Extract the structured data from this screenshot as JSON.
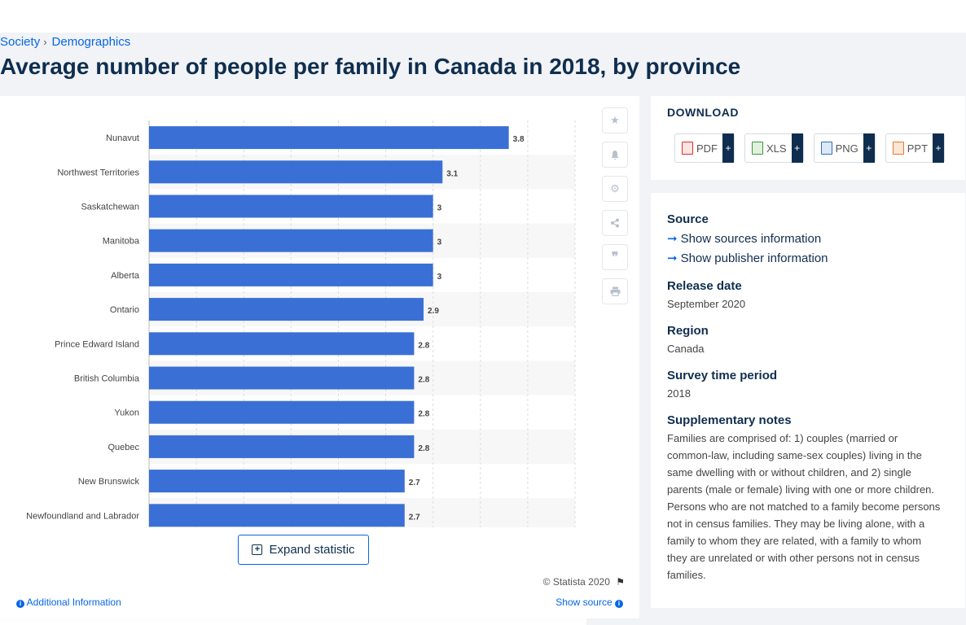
{
  "breadcrumb": {
    "items": [
      "Society",
      "Demographics"
    ]
  },
  "page_title": "Average number of people per family in Canada in 2018, by province",
  "colors": {
    "bar": "#3a70d5",
    "title": "#0f2e4f",
    "link": "#0666e5"
  },
  "chart_data": {
    "type": "bar",
    "orientation": "horizontal",
    "categories": [
      "Nunavut",
      "Northwest Territories",
      "Saskatchewan",
      "Manitoba",
      "Alberta",
      "Ontario",
      "Prince Edward Island",
      "British Columbia",
      "Yukon",
      "Quebec",
      "New Brunswick",
      "Newfoundland and Labrador"
    ],
    "values": [
      3.8,
      3.1,
      3,
      3,
      3,
      2.9,
      2.8,
      2.8,
      2.8,
      2.8,
      2.7,
      2.7
    ],
    "data_labels": [
      "3.8",
      "3.1",
      "3",
      "3",
      "3",
      "2.9",
      "2.8",
      "2.8",
      "2.8",
      "2.8",
      "2.7",
      "2.7"
    ],
    "xlim": [
      0,
      4.5
    ],
    "grid": true,
    "title": "",
    "xlabel": "",
    "ylabel": ""
  },
  "tools": [
    "star-icon",
    "bell-icon",
    "gear-icon",
    "share-icon",
    "quote-icon",
    "print-icon"
  ],
  "expand_label": "Expand statistic",
  "copyright": "© Statista 2020",
  "additional_info": "Additional Information",
  "show_source": "Show source",
  "download": {
    "title": "DOWNLOAD",
    "buttons": [
      {
        "label": "PDF",
        "icon": "pdf-icon",
        "color": "#d9302c"
      },
      {
        "label": "XLS",
        "icon": "xls-icon",
        "color": "#3b9a3b"
      },
      {
        "label": "PNG",
        "icon": "png-icon",
        "color": "#2d6fb7"
      },
      {
        "label": "PPT",
        "icon": "ppt-icon",
        "color": "#e8752a"
      }
    ]
  },
  "info": {
    "source_label": "Source",
    "show_sources": "Show sources information",
    "show_publisher": "Show publisher information",
    "release_label": "Release date",
    "release_value": "September 2020",
    "region_label": "Region",
    "region_value": "Canada",
    "survey_label": "Survey time period",
    "survey_value": "2018",
    "notes_label": "Supplementary notes",
    "notes_value": "Families are comprised of: 1) couples (married or common-law, including same-sex couples) living in the same dwelling with or without children, and 2) single parents (male or female) living with one or more children. Persons who are not matched to a family become persons not in census families. They may be living alone, with a family to whom they are related, with a family to whom they are unrelated or with other persons not in census families."
  }
}
